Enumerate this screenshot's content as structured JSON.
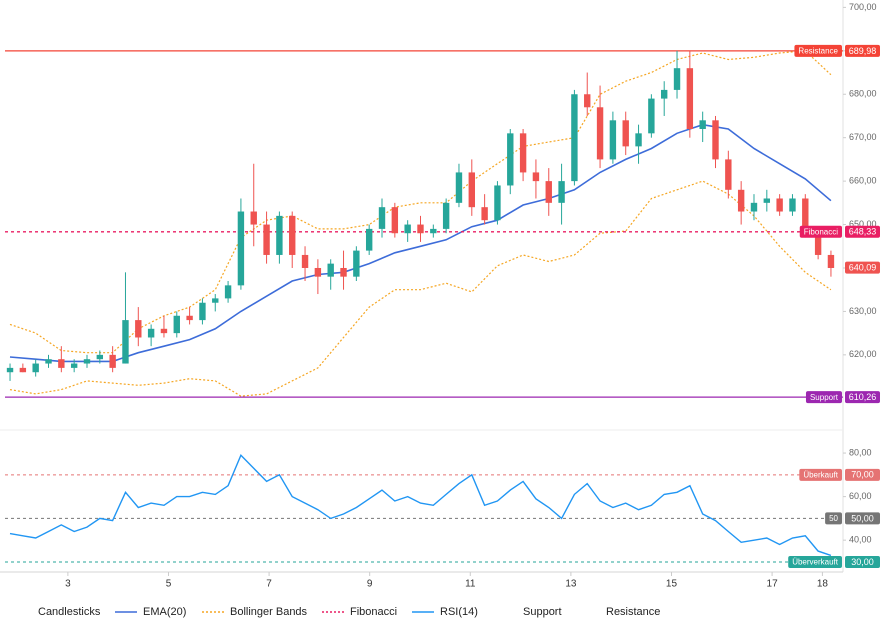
{
  "chart_data": [
    {
      "type": "candlestick",
      "name": "Candlesticks",
      "up_color": "#26a69a",
      "down_color": "#ef5350",
      "x": [
        1.85,
        2.105,
        2.36,
        2.615,
        2.87,
        3.125,
        3.38,
        3.635,
        3.89,
        4.145,
        4.4,
        4.655,
        4.91,
        5.165,
        5.42,
        5.675,
        5.93,
        6.185,
        6.44,
        6.695,
        6.95,
        7.205,
        7.46,
        7.715,
        7.97,
        8.225,
        8.48,
        8.735,
        8.99,
        9.245,
        9.5,
        9.755,
        10.01,
        10.265,
        10.52,
        10.775,
        11.03,
        11.285,
        11.54,
        11.795,
        12.05,
        12.305,
        12.56,
        12.815,
        13.07,
        13.325,
        13.58,
        13.835,
        14.09,
        14.345,
        14.6,
        14.855,
        15.11,
        15.365,
        15.62,
        15.875,
        16.13,
        16.385,
        16.64,
        16.895,
        17.15,
        17.405,
        17.66,
        17.915,
        18.17
      ],
      "open": [
        616,
        617,
        616,
        618,
        619,
        617,
        618,
        619,
        620,
        618,
        628,
        624,
        626,
        625,
        629,
        628,
        632,
        633,
        636,
        653,
        650,
        643,
        652,
        643,
        640,
        638,
        640,
        638,
        644,
        649,
        654,
        648,
        650,
        648,
        649,
        655,
        662,
        654,
        651,
        659,
        671,
        662,
        660,
        655,
        660,
        680,
        677,
        665,
        674,
        668,
        671,
        679,
        681,
        686,
        672,
        674,
        665,
        658,
        653,
        655,
        656,
        653,
        656,
        648,
        643
      ],
      "high": [
        618,
        618,
        619,
        620,
        622,
        619,
        620,
        621,
        622,
        639,
        631,
        627,
        629,
        630,
        631,
        633,
        634,
        637,
        656,
        664,
        653,
        653,
        653,
        645,
        642,
        642,
        644,
        645,
        650,
        656,
        655,
        651,
        652,
        650,
        656,
        664,
        665,
        657,
        660,
        672,
        672,
        665,
        663,
        664,
        681,
        685,
        682,
        676,
        676,
        673,
        680,
        683,
        690,
        690,
        676,
        675,
        667,
        660,
        657,
        658,
        657,
        657,
        657,
        649,
        644
      ],
      "low": [
        614,
        616,
        615,
        617,
        616,
        616,
        617,
        618,
        616,
        618,
        622,
        622,
        624,
        624,
        627,
        627,
        630,
        632,
        635,
        645,
        641,
        641,
        640,
        637,
        634,
        635,
        635,
        637,
        643,
        647,
        647,
        646,
        646,
        647,
        648,
        654,
        652,
        650,
        650,
        657,
        660,
        656,
        652,
        650,
        659,
        675,
        663,
        664,
        666,
        664,
        670,
        675,
        679,
        670,
        669,
        663,
        656,
        650,
        651,
        653,
        652,
        652,
        647,
        642,
        638
      ],
      "close": [
        617,
        616,
        618,
        619,
        617,
        618,
        619,
        620,
        617,
        628,
        624,
        626,
        625,
        629,
        628,
        632,
        633,
        636,
        653,
        650,
        643,
        652,
        643,
        640,
        638,
        641,
        638,
        644,
        649,
        654,
        648,
        650,
        648,
        649,
        655,
        662,
        654,
        651,
        659,
        671,
        662,
        660,
        655,
        660,
        680,
        677,
        665,
        674,
        668,
        671,
        679,
        681,
        686,
        672,
        674,
        665,
        658,
        653,
        655,
        656,
        653,
        656,
        648,
        643,
        640
      ],
      "lines": [
        {
          "name": "EMA(20)",
          "color": "#3d6cd9",
          "style": "solid",
          "x": [
            1.85,
            2.36,
            2.87,
            3.38,
            3.89,
            4.4,
            4.91,
            5.42,
            5.93,
            6.44,
            6.95,
            7.46,
            7.97,
            8.48,
            8.99,
            9.5,
            10.01,
            10.52,
            11.03,
            11.54,
            12.05,
            12.56,
            13.07,
            13.58,
            14.09,
            14.6,
            15.11,
            15.62,
            16.13,
            16.64,
            17.15,
            17.66,
            18.17
          ],
          "values": [
            619.5,
            619,
            618.5,
            618.5,
            618.5,
            620.5,
            622,
            623.5,
            626,
            630,
            633.5,
            637,
            638.5,
            639,
            641,
            643.5,
            645,
            646.5,
            649.5,
            651,
            654.5,
            656,
            658,
            662,
            665,
            667.5,
            671,
            673,
            672,
            667.5,
            664,
            660.5,
            655.5
          ]
        },
        {
          "name": "Bollinger Bands",
          "color": "#f5a623",
          "style": "dotted",
          "x": [
            1.85,
            2.36,
            2.87,
            3.38,
            3.89,
            4.4,
            4.91,
            5.42,
            5.93,
            6.44,
            6.95,
            7.46,
            7.97,
            8.48,
            8.99,
            9.5,
            10.01,
            10.52,
            11.03,
            11.54,
            12.05,
            12.56,
            13.07,
            13.58,
            14.09,
            14.6,
            15.11,
            15.62,
            16.13,
            16.64,
            17.15,
            17.66,
            18.17
          ],
          "upper": [
            627,
            625,
            621,
            620.5,
            620.5,
            626,
            629,
            631,
            635,
            647,
            651,
            652,
            649,
            649,
            650,
            654,
            655,
            655,
            660,
            664,
            668,
            669,
            670,
            680,
            683,
            685,
            688,
            689.5,
            688,
            688.5,
            689.5,
            690,
            684.5
          ],
          "lower": [
            612,
            611,
            612,
            614,
            613.5,
            613,
            613.5,
            614.5,
            614,
            610.5,
            611,
            614,
            617,
            624,
            631,
            635,
            635,
            636.5,
            634.5,
            640.5,
            643,
            641.5,
            643,
            648,
            648.5,
            656,
            658,
            660,
            657,
            652,
            645,
            639,
            635
          ]
        }
      ],
      "levels": [
        {
          "name": "Resistance",
          "value": {
            "value": 689.98,
            "label": "689,98"
          },
          "color": "#f44336",
          "style": "solid"
        },
        {
          "name": "Fibonacci",
          "value": {
            "value": 648.33,
            "label": "648,33"
          },
          "color": "#e91e63",
          "style": "dashed"
        },
        {
          "name": "Support",
          "value": {
            "value": 610.26,
            "label": "610,26"
          },
          "color": "#9c27b0",
          "style": "solid"
        }
      ],
      "last_price": {
        "value": 640.09,
        "label": "640,09"
      },
      "xlim": [
        1.75,
        18.35
      ],
      "xticks": [
        3,
        5,
        7,
        9,
        11,
        13,
        15,
        17,
        18
      ],
      "ylim": [
        605,
        701.7
      ],
      "yticks": [
        {
          "value": 620,
          "label": "620,00"
        },
        {
          "value": 630,
          "label": "630,00"
        },
        {
          "value": 640,
          "label": "640,00"
        },
        {
          "value": 650,
          "label": "650,00"
        },
        {
          "value": 660,
          "label": "660,00"
        },
        {
          "value": 670,
          "label": "670,00"
        },
        {
          "value": 680,
          "label": "680,00"
        },
        {
          "value": 690,
          "label": "690,00"
        },
        {
          "value": 700,
          "label": "700,00"
        }
      ]
    },
    {
      "type": "line",
      "name": "RSI(14)",
      "color": "#2196f3",
      "values": [
        43,
        42,
        41,
        44,
        47,
        44,
        46,
        50,
        49,
        62,
        55,
        57,
        56,
        60,
        60,
        62,
        61,
        65,
        79,
        73,
        67,
        70,
        60,
        57,
        54,
        50,
        52,
        55,
        59,
        63,
        58,
        60,
        57,
        56,
        61,
        66,
        70,
        56,
        58,
        63,
        67,
        59,
        55,
        50,
        61,
        66,
        58,
        55,
        57,
        54,
        56,
        61,
        62,
        65,
        52,
        49,
        44,
        39,
        40,
        41,
        38,
        41,
        42,
        35,
        33
      ],
      "ylim": [
        26.3,
        86
      ],
      "yticks": [
        {
          "value": 40,
          "label": "40,00"
        },
        {
          "value": 60,
          "label": "60,00"
        },
        {
          "value": 80,
          "label": "80,00"
        }
      ],
      "levels": [
        {
          "name": "Überkauft",
          "value": {
            "value": 70,
            "label": "70,00"
          },
          "color": "#e57373",
          "style": "dashed"
        },
        {
          "name": "50",
          "value": {
            "value": 50,
            "label": "50,00"
          },
          "color": "#757575",
          "style": "dashed"
        },
        {
          "name": "Überverkauft",
          "value": {
            "value": 30,
            "label": "30,00"
          },
          "color": "#26a69a",
          "style": "dashed"
        }
      ]
    }
  ]
}
